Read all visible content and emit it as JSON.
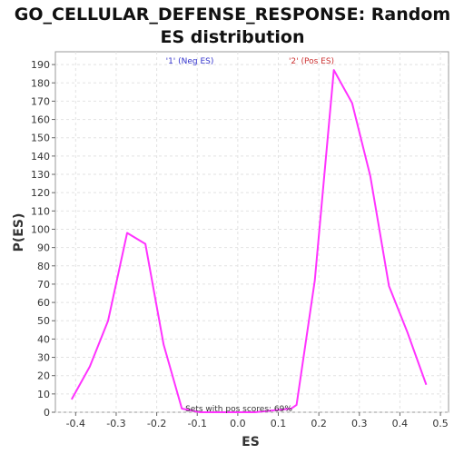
{
  "chart_data": {
    "type": "line",
    "title_line1": "GO_CELLULAR_DEFENSE_RESPONSE: Random",
    "title_line2": "ES distribution",
    "xlabel": "ES",
    "ylabel": "P(ES)",
    "xlim": [
      -0.45,
      0.52
    ],
    "ylim": [
      0,
      197
    ],
    "x_ticks": [
      "-0.4",
      "-0.3",
      "-0.2",
      "-0.1",
      "0.0",
      "0.1",
      "0.2",
      "0.3",
      "0.4",
      "0.5"
    ],
    "x_tick_values": [
      -0.4,
      -0.3,
      -0.2,
      -0.1,
      0.0,
      0.1,
      0.2,
      0.3,
      0.4,
      0.5
    ],
    "y_ticks": [
      "0",
      "10",
      "20",
      "30",
      "40",
      "50",
      "60",
      "70",
      "80",
      "90",
      "100",
      "110",
      "120",
      "130",
      "140",
      "150",
      "160",
      "170",
      "180",
      "190"
    ],
    "y_tick_values": [
      0,
      10,
      20,
      30,
      40,
      50,
      60,
      70,
      80,
      90,
      100,
      110,
      120,
      130,
      140,
      150,
      160,
      170,
      180,
      190
    ],
    "grid": true,
    "series": [
      {
        "color": "#ff33ff",
        "x": [
          -0.41,
          -0.365,
          -0.32,
          -0.273,
          -0.228,
          -0.183,
          -0.138,
          -0.093,
          -0.048,
          -0.003,
          0.042,
          0.087,
          0.132,
          0.145,
          0.19,
          0.237,
          0.282,
          0.327,
          0.373,
          0.418,
          0.465
        ],
        "y": [
          7,
          25,
          50,
          98,
          92,
          37,
          2,
          0,
          0,
          0,
          0,
          1,
          2,
          4,
          72,
          187,
          169,
          129,
          69,
          44,
          15
        ]
      }
    ],
    "annotations": {
      "neg_label": "'1' (Neg ES)",
      "neg_color": "#3333cc",
      "pos_label": "'2' (Pos ES)",
      "pos_color": "#cc3333",
      "bottom_label": "Sets with pos scores: 69%"
    }
  }
}
